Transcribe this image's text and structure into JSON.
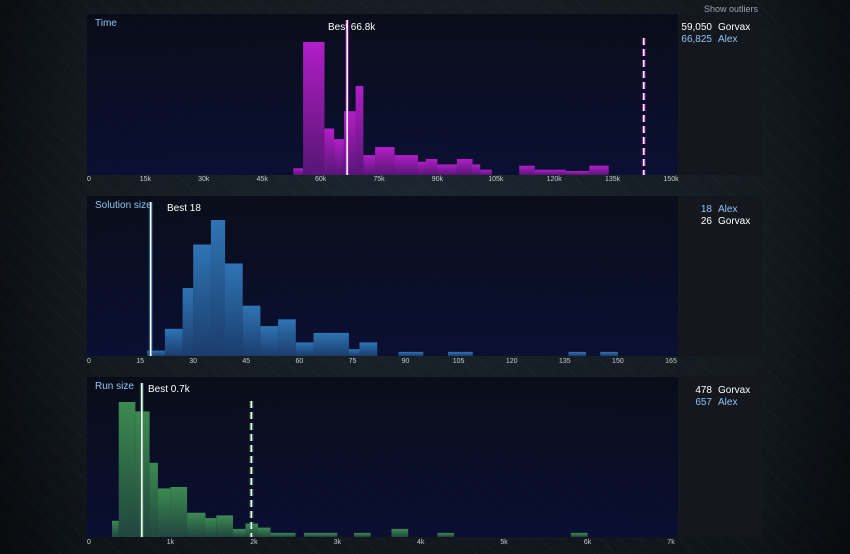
{
  "controls": {
    "show_outliers": "Show outliers"
  },
  "colors": {
    "time": "#b21ec8",
    "solution": "#2f74b5",
    "run": "#3c8a52",
    "highlight": "#8ec4f0",
    "text": "#ffffff"
  },
  "panels": [
    {
      "title": "Time",
      "best_label": "Best 66.8k",
      "x_ticks": [
        "0",
        "15k",
        "30k",
        "45k",
        "60k",
        "75k",
        "90k",
        "105k",
        "120k",
        "135k",
        "150k"
      ],
      "legend": [
        {
          "score": "59,050",
          "name": "Gorvax",
          "highlight": false
        },
        {
          "score": "66,825",
          "name": "Alex",
          "highlight": true
        }
      ]
    },
    {
      "title": "Solution size",
      "best_label": "Best 18",
      "x_ticks": [
        "0",
        "15",
        "30",
        "45",
        "60",
        "75",
        "90",
        "105",
        "120",
        "135",
        "150",
        "165"
      ],
      "legend": [
        {
          "score": "18",
          "name": "Alex",
          "highlight": true
        },
        {
          "score": "26",
          "name": "Gorvax",
          "highlight": false
        }
      ]
    },
    {
      "title": "Run size",
      "best_label": "Best 0.7k",
      "x_ticks": [
        "0",
        "1k",
        "2k",
        "3k",
        "4k",
        "5k",
        "6k",
        "7k"
      ],
      "legend": [
        {
          "score": "478",
          "name": "Gorvax",
          "highlight": false
        },
        {
          "score": "657",
          "name": "Alex",
          "highlight": true
        }
      ]
    }
  ],
  "chart_data": [
    {
      "type": "bar",
      "title": "Time",
      "xlim": [
        0,
        150000
      ],
      "bin_width": 2500,
      "bins": [
        {
          "x0": 53000,
          "x1": 55500,
          "v": 0.05
        },
        {
          "x0": 55500,
          "x1": 61000,
          "v": 1.0
        },
        {
          "x0": 61000,
          "x1": 63500,
          "v": 0.35
        },
        {
          "x0": 63500,
          "x1": 66000,
          "v": 0.27
        },
        {
          "x0": 66000,
          "x1": 69000,
          "v": 0.48
        },
        {
          "x0": 69000,
          "x1": 71000,
          "v": 0.67
        },
        {
          "x0": 71000,
          "x1": 74000,
          "v": 0.15
        },
        {
          "x0": 74000,
          "x1": 79000,
          "v": 0.21
        },
        {
          "x0": 79000,
          "x1": 85000,
          "v": 0.15
        },
        {
          "x0": 85000,
          "x1": 87000,
          "v": 0.1
        },
        {
          "x0": 87000,
          "x1": 90000,
          "v": 0.12
        },
        {
          "x0": 90000,
          "x1": 95000,
          "v": 0.08
        },
        {
          "x0": 95000,
          "x1": 99000,
          "v": 0.12
        },
        {
          "x0": 99000,
          "x1": 101000,
          "v": 0.08
        },
        {
          "x0": 101000,
          "x1": 104000,
          "v": 0.04
        },
        {
          "x0": 111000,
          "x1": 115000,
          "v": 0.07
        },
        {
          "x0": 115000,
          "x1": 123000,
          "v": 0.04
        },
        {
          "x0": 123000,
          "x1": 129000,
          "v": 0.03
        },
        {
          "x0": 129000,
          "x1": 134000,
          "v": 0.07
        }
      ],
      "best": 66825,
      "dashed": 143000
    },
    {
      "type": "bar",
      "title": "Solution size",
      "xlim": [
        0,
        165
      ],
      "bins": [
        {
          "x0": 17,
          "x1": 22,
          "v": 0.04
        },
        {
          "x0": 22,
          "x1": 27,
          "v": 0.2
        },
        {
          "x0": 27,
          "x1": 30,
          "v": 0.5
        },
        {
          "x0": 30,
          "x1": 35,
          "v": 0.82
        },
        {
          "x0": 35,
          "x1": 39,
          "v": 1.0
        },
        {
          "x0": 39,
          "x1": 44,
          "v": 0.68
        },
        {
          "x0": 44,
          "x1": 49,
          "v": 0.37
        },
        {
          "x0": 49,
          "x1": 54,
          "v": 0.22
        },
        {
          "x0": 54,
          "x1": 59,
          "v": 0.27
        },
        {
          "x0": 59,
          "x1": 64,
          "v": 0.1
        },
        {
          "x0": 64,
          "x1": 74,
          "v": 0.17
        },
        {
          "x0": 74,
          "x1": 77,
          "v": 0.05
        },
        {
          "x0": 77,
          "x1": 82,
          "v": 0.1
        },
        {
          "x0": 88,
          "x1": 95,
          "v": 0.03
        },
        {
          "x0": 102,
          "x1": 109,
          "v": 0.03
        },
        {
          "x0": 136,
          "x1": 141,
          "v": 0.03
        },
        {
          "x0": 145,
          "x1": 150,
          "v": 0.03
        }
      ],
      "best": 18
    },
    {
      "type": "bar",
      "title": "Run size",
      "xlim": [
        0,
        7000
      ],
      "bins": [
        {
          "x0": 300,
          "x1": 380,
          "v": 0.12
        },
        {
          "x0": 380,
          "x1": 580,
          "v": 1.0
        },
        {
          "x0": 580,
          "x1": 750,
          "v": 0.93
        },
        {
          "x0": 750,
          "x1": 850,
          "v": 0.55
        },
        {
          "x0": 850,
          "x1": 1000,
          "v": 0.36
        },
        {
          "x0": 1000,
          "x1": 1200,
          "v": 0.37
        },
        {
          "x0": 1200,
          "x1": 1420,
          "v": 0.18
        },
        {
          "x0": 1420,
          "x1": 1550,
          "v": 0.14
        },
        {
          "x0": 1550,
          "x1": 1750,
          "v": 0.16
        },
        {
          "x0": 1750,
          "x1": 1900,
          "v": 0.06
        },
        {
          "x0": 1900,
          "x1": 2050,
          "v": 0.1
        },
        {
          "x0": 2050,
          "x1": 2200,
          "v": 0.07
        },
        {
          "x0": 2200,
          "x1": 2500,
          "v": 0.03
        },
        {
          "x0": 2600,
          "x1": 3000,
          "v": 0.03
        },
        {
          "x0": 3200,
          "x1": 3400,
          "v": 0.03
        },
        {
          "x0": 3650,
          "x1": 3850,
          "v": 0.06
        },
        {
          "x0": 4200,
          "x1": 4400,
          "v": 0.03
        },
        {
          "x0": 5800,
          "x1": 6000,
          "v": 0.03
        }
      ],
      "best": 657,
      "dashed": 1970
    }
  ]
}
